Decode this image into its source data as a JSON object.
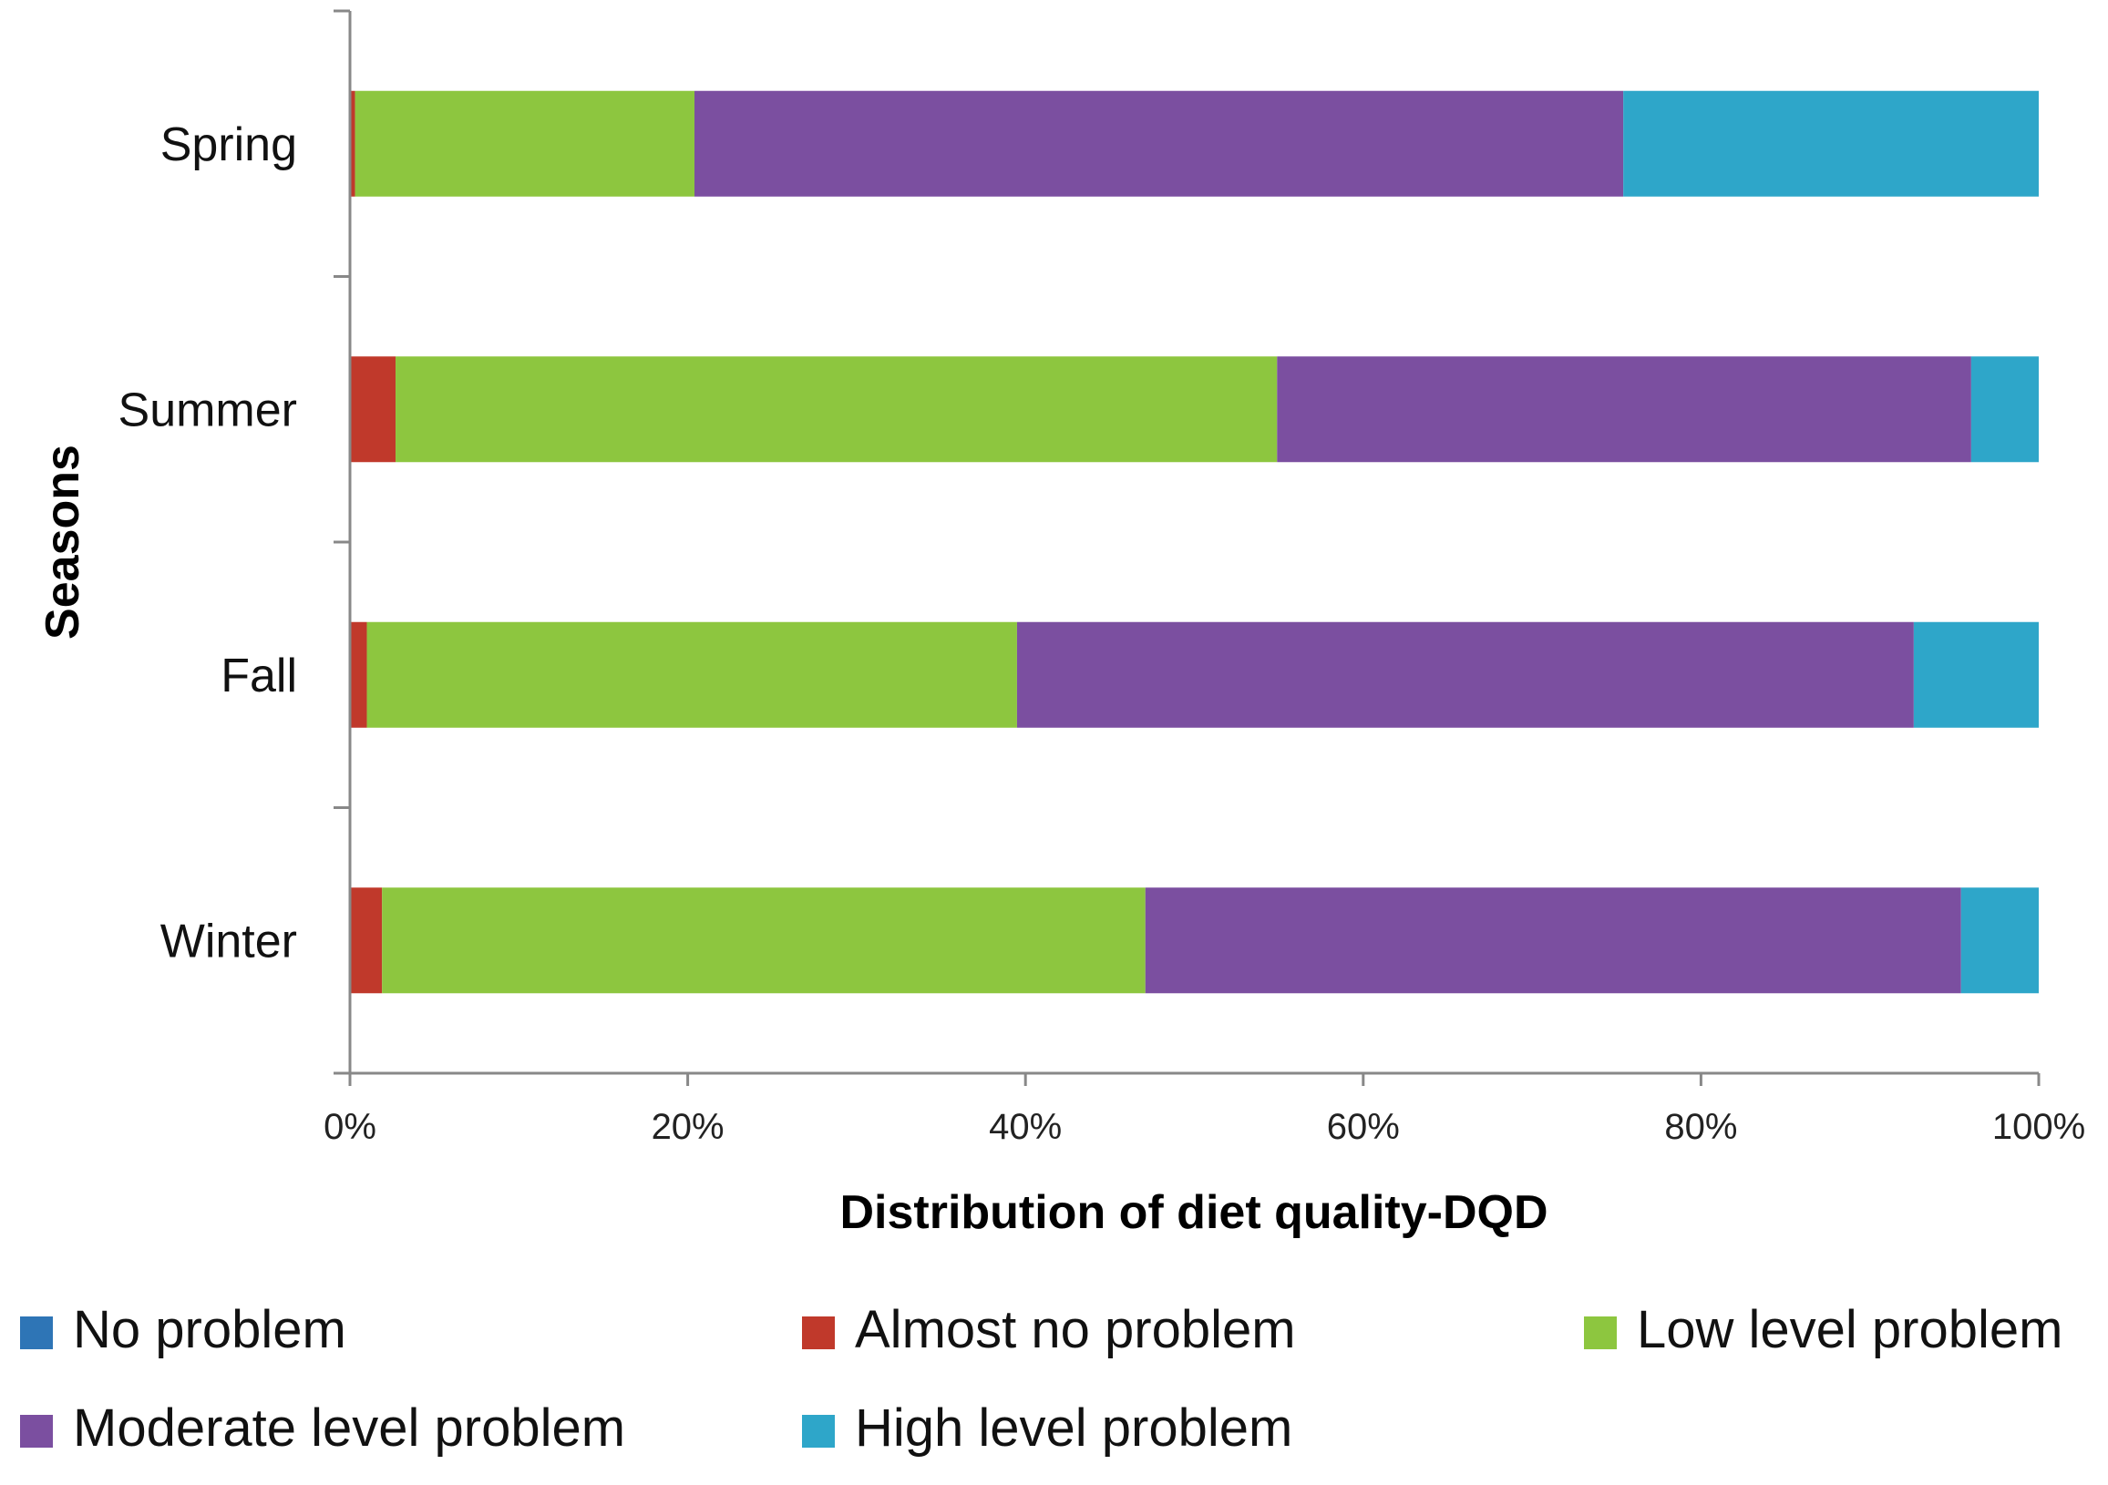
{
  "chart_data": {
    "type": "bar",
    "orientation": "horizontal",
    "stacked": "percent",
    "title": "",
    "xlabel": "Distribution  of diet quality-DQD",
    "ylabel": "Seasons",
    "xlim": [
      0,
      100
    ],
    "x_ticks": [
      "0%",
      "20%",
      "40%",
      "60%",
      "80%",
      "100%"
    ],
    "categories": [
      "Spring",
      "Summer",
      "Fall",
      "Winter"
    ],
    "series": [
      {
        "name": "No problem",
        "color": "#2e75b6",
        "values": [
          0,
          0,
          0,
          0
        ]
      },
      {
        "name": "Almost no problem",
        "color": "#c0392b",
        "values": [
          0.3,
          2.7,
          1.0,
          1.9
        ]
      },
      {
        "name": "Low level problem",
        "color": "#8dc63f",
        "values": [
          20.1,
          52.2,
          38.5,
          45.2
        ]
      },
      {
        "name": "Moderate level problem",
        "color": "#7b4fa0",
        "values": [
          55.0,
          41.1,
          53.1,
          48.3
        ]
      },
      {
        "name": "High level problem",
        "color": "#2ea6c9",
        "values": [
          24.6,
          4.0,
          7.4,
          4.6
        ]
      }
    ],
    "legend": "bottom",
    "grid": false
  }
}
